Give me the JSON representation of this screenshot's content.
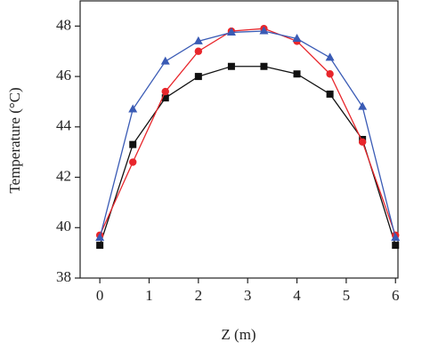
{
  "chart_data": {
    "type": "line",
    "x_label": "Z (m)",
    "y_label": "Temperature (°C)",
    "x": [
      0,
      0.67,
      1.33,
      2,
      2.67,
      3.33,
      4,
      4.67,
      5.33,
      6
    ],
    "series": [
      {
        "color": "#111111",
        "marker": "square",
        "values": [
          39.3,
          43.3,
          45.15,
          46.0,
          46.4,
          46.4,
          46.1,
          45.3,
          43.5,
          39.3
        ]
      },
      {
        "color": "#e8262b",
        "marker": "circle",
        "values": [
          39.7,
          42.6,
          45.4,
          47.0,
          47.8,
          47.9,
          47.4,
          46.1,
          43.4,
          39.7
        ]
      },
      {
        "color": "#3a5bb5",
        "marker": "triangle",
        "values": [
          39.6,
          44.7,
          46.6,
          47.4,
          47.75,
          47.8,
          47.5,
          46.75,
          44.8,
          39.6
        ]
      }
    ],
    "xlim": [
      -0.4,
      6.05
    ],
    "ylim": [
      38,
      49
    ],
    "xticks": [
      0,
      1,
      2,
      3,
      4,
      5,
      6
    ],
    "yticks": [
      38,
      40,
      42,
      44,
      46,
      48
    ]
  }
}
